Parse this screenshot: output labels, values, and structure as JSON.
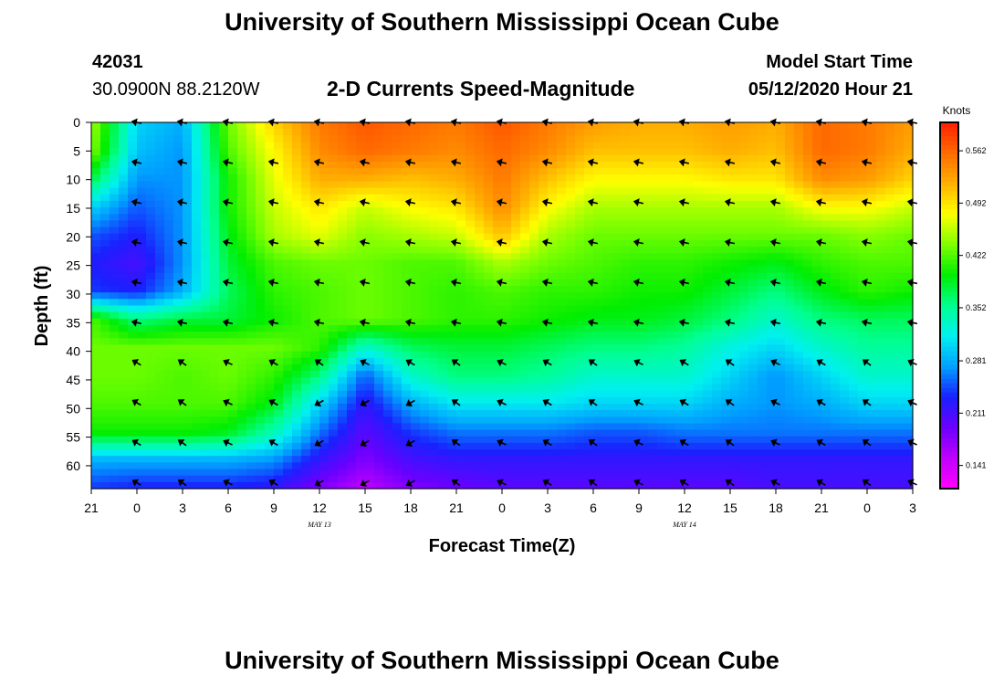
{
  "header": {
    "title_top": "University of Southern Mississippi Ocean Cube",
    "title_bottom": "University of Southern Mississippi Ocean Cube",
    "station_id": "42031",
    "station_coords": "30.0900N 88.2120W",
    "chart_title": "2-D Currents Speed-Magnitude",
    "model_label": "Model Start Time",
    "model_time": "05/12/2020 Hour 21"
  },
  "chart_data": {
    "type": "heatmap",
    "title": "2-D Currents Speed-Magnitude",
    "xlabel": "Forecast Time(Z)",
    "ylabel": "Depth (ft)",
    "x_tick_labels": [
      "21",
      "0",
      "3",
      "6",
      "9",
      "12",
      "15",
      "18",
      "21",
      "0",
      "3",
      "6",
      "9",
      "12",
      "15",
      "18",
      "21",
      "0",
      "3"
    ],
    "x_hours": [
      0,
      3,
      6,
      9,
      12,
      15,
      18,
      21,
      24,
      27,
      30,
      33,
      36,
      39,
      42,
      45,
      48,
      51,
      54
    ],
    "date_labels": [
      {
        "hour": 15,
        "text": "MAY 13"
      },
      {
        "hour": 39,
        "text": "MAY 14"
      }
    ],
    "depth_ticks": [
      0,
      5,
      10,
      15,
      20,
      25,
      30,
      35,
      40,
      45,
      50,
      55,
      60
    ],
    "ylim": [
      0,
      64
    ],
    "colorbar": {
      "title": "Knots",
      "ticks": [
        0.562,
        0.492,
        0.422,
        0.352,
        0.281,
        0.211,
        0.141
      ],
      "range": [
        0.11,
        0.6
      ],
      "colors": [
        "#ff00ff",
        "#c000ff",
        "#6a00ff",
        "#1a20ff",
        "#00a0ff",
        "#00f0f0",
        "#00ff90",
        "#00ee00",
        "#80ff00",
        "#ffff00",
        "#ffb000",
        "#ff6a00",
        "#ff2000"
      ]
    },
    "arrow_depths": [
      0,
      7,
      14,
      21,
      28,
      35,
      42,
      49,
      56,
      63
    ],
    "speed_grid_knots": [
      [
        0.45,
        0.3,
        0.28,
        0.43,
        0.5,
        0.55,
        0.57,
        0.56,
        0.55,
        0.57,
        0.55,
        0.53,
        0.52,
        0.52,
        0.53,
        0.52,
        0.56,
        0.55,
        0.53
      ],
      [
        0.44,
        0.29,
        0.27,
        0.42,
        0.48,
        0.54,
        0.56,
        0.55,
        0.54,
        0.56,
        0.54,
        0.51,
        0.51,
        0.51,
        0.52,
        0.51,
        0.56,
        0.55,
        0.52
      ],
      [
        0.38,
        0.27,
        0.27,
        0.4,
        0.47,
        0.52,
        0.52,
        0.51,
        0.52,
        0.55,
        0.51,
        0.48,
        0.48,
        0.48,
        0.49,
        0.49,
        0.54,
        0.53,
        0.5
      ],
      [
        0.3,
        0.25,
        0.27,
        0.4,
        0.46,
        0.49,
        0.46,
        0.48,
        0.49,
        0.54,
        0.48,
        0.45,
        0.45,
        0.45,
        0.45,
        0.45,
        0.48,
        0.48,
        0.46
      ],
      [
        0.25,
        0.23,
        0.27,
        0.39,
        0.45,
        0.47,
        0.44,
        0.45,
        0.46,
        0.51,
        0.45,
        0.43,
        0.43,
        0.43,
        0.43,
        0.43,
        0.43,
        0.44,
        0.43
      ],
      [
        0.23,
        0.21,
        0.27,
        0.38,
        0.42,
        0.43,
        0.43,
        0.42,
        0.42,
        0.45,
        0.43,
        0.42,
        0.41,
        0.41,
        0.4,
        0.39,
        0.41,
        0.42,
        0.42
      ],
      [
        0.24,
        0.23,
        0.28,
        0.37,
        0.41,
        0.42,
        0.43,
        0.42,
        0.41,
        0.42,
        0.41,
        0.41,
        0.4,
        0.4,
        0.38,
        0.36,
        0.39,
        0.41,
        0.4
      ],
      [
        0.42,
        0.36,
        0.38,
        0.38,
        0.4,
        0.42,
        0.43,
        0.42,
        0.41,
        0.41,
        0.4,
        0.39,
        0.39,
        0.38,
        0.36,
        0.33,
        0.36,
        0.37,
        0.37
      ],
      [
        0.43,
        0.43,
        0.43,
        0.43,
        0.43,
        0.41,
        0.33,
        0.37,
        0.38,
        0.38,
        0.37,
        0.36,
        0.36,
        0.35,
        0.32,
        0.3,
        0.33,
        0.35,
        0.35
      ],
      [
        0.43,
        0.43,
        0.42,
        0.43,
        0.41,
        0.36,
        0.25,
        0.33,
        0.36,
        0.36,
        0.35,
        0.33,
        0.33,
        0.33,
        0.3,
        0.27,
        0.3,
        0.33,
        0.33
      ],
      [
        0.42,
        0.42,
        0.42,
        0.42,
        0.39,
        0.3,
        0.22,
        0.28,
        0.31,
        0.31,
        0.31,
        0.3,
        0.3,
        0.3,
        0.28,
        0.27,
        0.28,
        0.3,
        0.3
      ],
      [
        0.4,
        0.4,
        0.4,
        0.39,
        0.34,
        0.26,
        0.2,
        0.24,
        0.26,
        0.26,
        0.26,
        0.25,
        0.25,
        0.26,
        0.26,
        0.26,
        0.26,
        0.26,
        0.26
      ],
      [
        0.28,
        0.28,
        0.28,
        0.28,
        0.27,
        0.22,
        0.18,
        0.21,
        0.22,
        0.22,
        0.22,
        0.22,
        0.22,
        0.22,
        0.22,
        0.22,
        0.22,
        0.22,
        0.22
      ],
      [
        0.24,
        0.23,
        0.23,
        0.23,
        0.22,
        0.18,
        0.15,
        0.18,
        0.19,
        0.2,
        0.2,
        0.2,
        0.2,
        0.2,
        0.2,
        0.21,
        0.21,
        0.21,
        0.21
      ]
    ]
  }
}
